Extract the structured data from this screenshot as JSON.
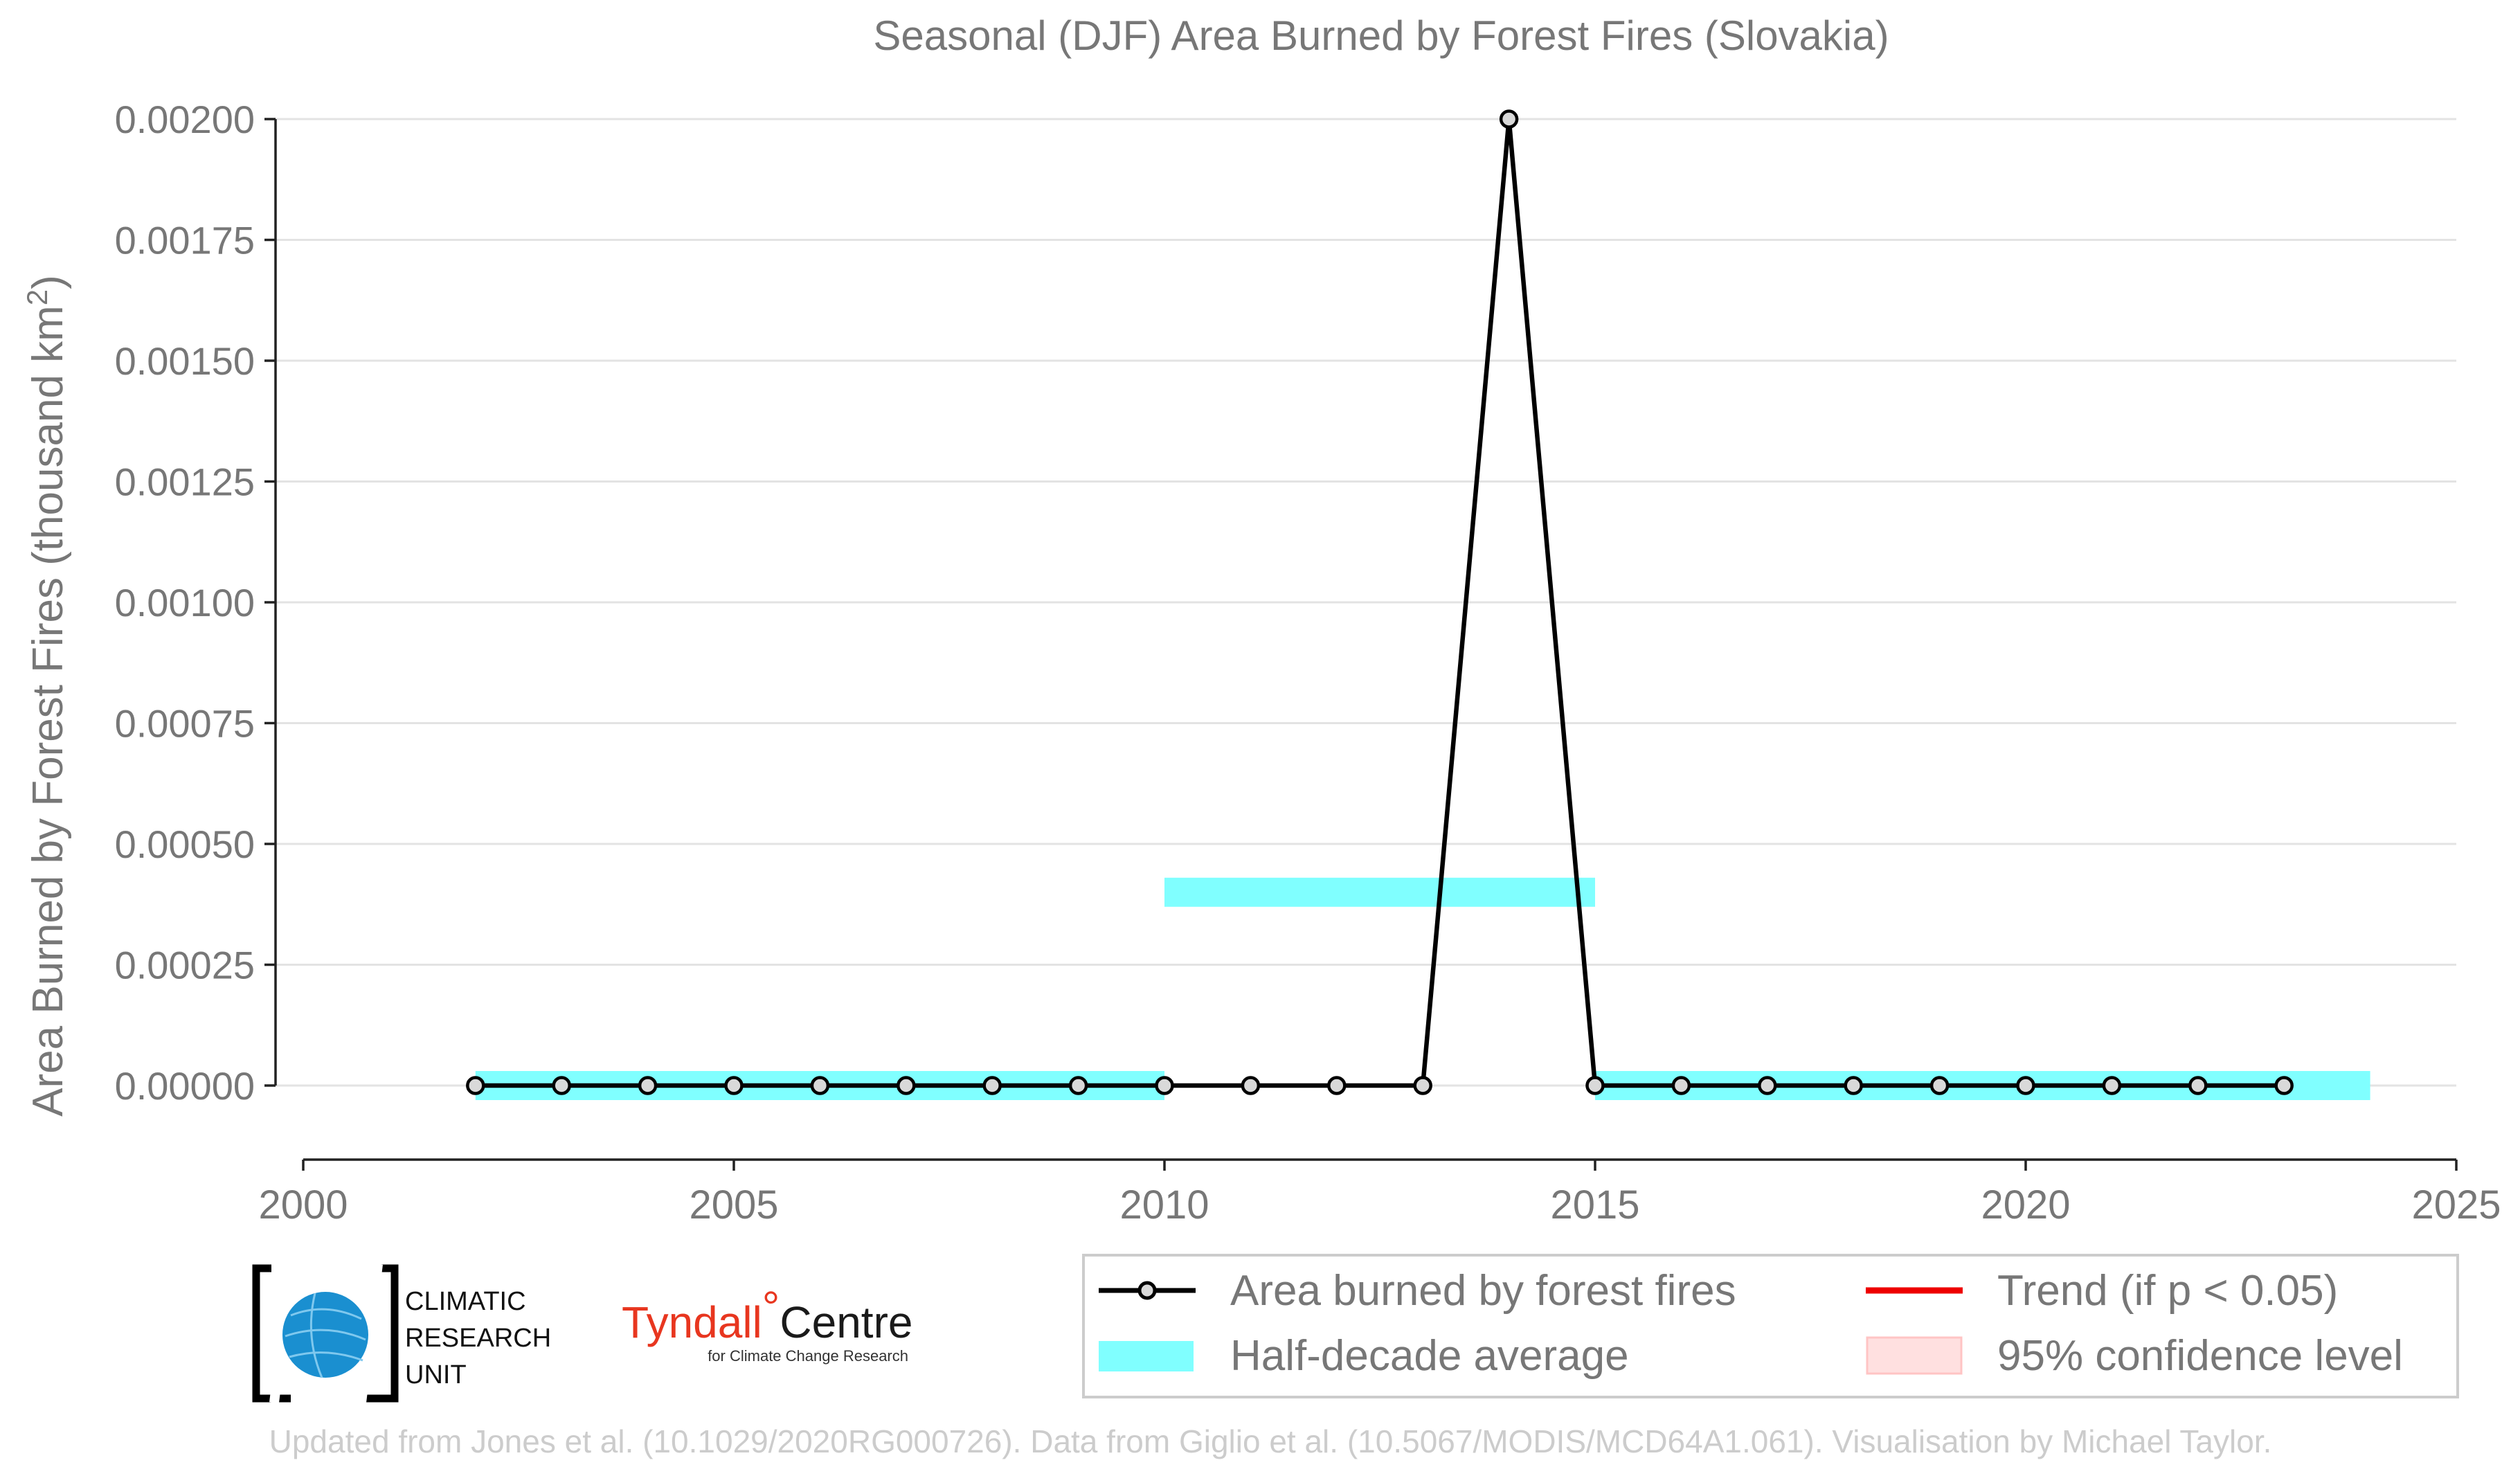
{
  "chart_data": {
    "type": "line",
    "title": "Seasonal (DJF) Area Burned by Forest Fires (Slovakia)",
    "ylabel": "Area Burned by Forest Fires (thousand km²)",
    "xlabel": "",
    "xlim": [
      2000,
      2025
    ],
    "ylim": [
      -0.00015,
      0.002
    ],
    "x_ticks": [
      2000,
      2005,
      2010,
      2015,
      2020,
      2025
    ],
    "x_tick_labels": [
      "2000",
      "2005",
      "2010",
      "2015",
      "2020",
      "2025"
    ],
    "y_ticks": [
      0,
      0.00025,
      0.0005,
      0.00075,
      0.001,
      0.00125,
      0.0015,
      0.00175,
      0.002
    ],
    "y_tick_labels": [
      "0.00000",
      "0.00025",
      "0.00050",
      "0.00075",
      "0.00100",
      "0.00125",
      "0.00150",
      "0.00175",
      "0.00200"
    ],
    "grid": true,
    "series": [
      {
        "name": "Area burned by forest fires",
        "color": "#000000",
        "marker_fill": "#d9d9d9",
        "x": [
          2002,
          2003,
          2004,
          2005,
          2006,
          2007,
          2008,
          2009,
          2010,
          2011,
          2012,
          2013,
          2014,
          2015,
          2016,
          2017,
          2018,
          2019,
          2020,
          2021,
          2022,
          2023
        ],
        "y": [
          0,
          0,
          0,
          0,
          0,
          0,
          0,
          0,
          0,
          0,
          0,
          0,
          0.002,
          0,
          0,
          0,
          0,
          0,
          0,
          0,
          0,
          0
        ]
      }
    ],
    "half_decade_average": {
      "name": "Half-decade average",
      "color": "#80ffff",
      "segments": [
        {
          "x_start": 2002,
          "x_end": 2010,
          "value": 0
        },
        {
          "x_start": 2010,
          "x_end": 2015,
          "value": 0.0004
        },
        {
          "x_start": 2015,
          "x_end": 2024,
          "value": 0
        }
      ]
    },
    "legend": {
      "placement": "bottom-right",
      "entries": [
        {
          "label": "Area burned by forest fires",
          "kind": "line-marker",
          "color": "#000000"
        },
        {
          "label": "Trend (if p < 0.05)",
          "kind": "line",
          "color": "#ee0000"
        },
        {
          "label": "Half-decade average",
          "kind": "band",
          "color": "#80ffff"
        },
        {
          "label": "95% confidence level",
          "kind": "patch",
          "color": "#ffe0e0"
        }
      ]
    }
  },
  "logos": {
    "cru": {
      "lines": [
        "CLIMATIC",
        "RESEARCH",
        "UNIT"
      ]
    },
    "tyndall": {
      "main": "Tyndall",
      "degree": "°",
      "centre": "Centre",
      "sub": "for Climate Change Research"
    }
  },
  "footer": "Updated from Jones et al. (10.1029/2020RG000726). Data from Giglio et al. (10.5067/MODIS/MCD64A1.061). Visualisation by Michael Taylor."
}
